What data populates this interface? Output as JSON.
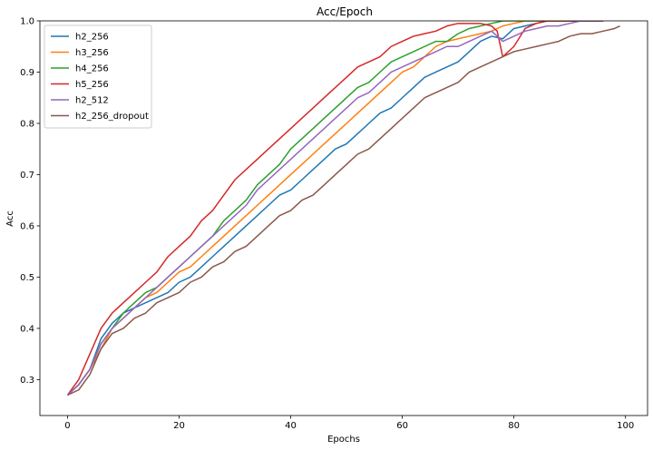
{
  "chart_data": {
    "type": "line",
    "title": "Acc/Epoch",
    "xlabel": "Epochs",
    "ylabel": "Acc",
    "xlim": [
      -4.95,
      103.95
    ],
    "ylim": [
      0.23,
      1.0
    ],
    "xticks": [
      0,
      20,
      40,
      60,
      80,
      100
    ],
    "yticks": [
      0.3,
      0.4,
      0.5,
      0.6,
      0.7,
      0.8,
      0.9,
      1.0
    ],
    "legend_position": "upper-left",
    "grid": false,
    "series": [
      {
        "name": "h2_256",
        "color": "#1f77b4",
        "x": [
          0,
          2,
          4,
          6,
          8,
          10,
          12,
          14,
          16,
          18,
          20,
          22,
          24,
          26,
          28,
          30,
          32,
          34,
          36,
          38,
          40,
          42,
          44,
          46,
          48,
          50,
          52,
          54,
          56,
          58,
          60,
          62,
          64,
          66,
          68,
          70,
          72,
          74,
          76,
          78,
          80,
          82,
          84,
          86,
          88,
          90,
          92,
          94,
          96
        ],
        "values": [
          0.27,
          0.29,
          0.32,
          0.38,
          0.41,
          0.43,
          0.44,
          0.45,
          0.46,
          0.47,
          0.49,
          0.5,
          0.52,
          0.54,
          0.56,
          0.58,
          0.6,
          0.62,
          0.64,
          0.66,
          0.67,
          0.69,
          0.71,
          0.73,
          0.75,
          0.76,
          0.78,
          0.8,
          0.82,
          0.83,
          0.85,
          0.87,
          0.89,
          0.9,
          0.91,
          0.92,
          0.94,
          0.96,
          0.97,
          0.965,
          0.985,
          0.99,
          0.995,
          1.0,
          1.0,
          1.0,
          1.0,
          1.0,
          1.0
        ]
      },
      {
        "name": "h3_256",
        "color": "#ff7f0e",
        "x": [
          0,
          2,
          4,
          6,
          8,
          10,
          12,
          14,
          16,
          18,
          20,
          22,
          24,
          26,
          28,
          30,
          32,
          34,
          36,
          38,
          40,
          42,
          44,
          46,
          48,
          50,
          52,
          54,
          56,
          58,
          60,
          62,
          64,
          66,
          68,
          70,
          72,
          74,
          76,
          78,
          80,
          82,
          84,
          86,
          88,
          90,
          92,
          94,
          96
        ],
        "values": [
          0.27,
          0.29,
          0.32,
          0.36,
          0.4,
          0.42,
          0.44,
          0.46,
          0.47,
          0.49,
          0.51,
          0.52,
          0.54,
          0.56,
          0.58,
          0.6,
          0.62,
          0.64,
          0.66,
          0.68,
          0.7,
          0.72,
          0.74,
          0.76,
          0.78,
          0.8,
          0.82,
          0.84,
          0.86,
          0.88,
          0.9,
          0.91,
          0.93,
          0.95,
          0.96,
          0.965,
          0.97,
          0.975,
          0.98,
          0.99,
          0.995,
          1.0,
          1.0,
          1.0,
          1.0,
          1.0,
          1.0,
          1.0,
          1.0
        ]
      },
      {
        "name": "h4_256",
        "color": "#2ca02c",
        "x": [
          0,
          2,
          4,
          6,
          8,
          10,
          12,
          14,
          16,
          18,
          20,
          22,
          24,
          26,
          28,
          30,
          32,
          34,
          36,
          38,
          40,
          42,
          44,
          46,
          48,
          50,
          52,
          54,
          56,
          58,
          60,
          62,
          64,
          66,
          68,
          70,
          72,
          74,
          76,
          78,
          80,
          82,
          84,
          86,
          88,
          90,
          92,
          94,
          96
        ],
        "values": [
          0.27,
          0.29,
          0.32,
          0.37,
          0.4,
          0.43,
          0.45,
          0.47,
          0.48,
          0.5,
          0.52,
          0.54,
          0.56,
          0.58,
          0.61,
          0.63,
          0.65,
          0.68,
          0.7,
          0.72,
          0.75,
          0.77,
          0.79,
          0.81,
          0.83,
          0.85,
          0.87,
          0.88,
          0.9,
          0.92,
          0.93,
          0.94,
          0.95,
          0.96,
          0.96,
          0.975,
          0.985,
          0.99,
          0.995,
          1.0,
          1.0,
          1.0,
          1.0,
          1.0,
          1.0,
          1.0,
          1.0,
          1.0,
          1.0
        ]
      },
      {
        "name": "h5_256",
        "color": "#d62728",
        "x": [
          0,
          2,
          4,
          6,
          8,
          10,
          12,
          14,
          16,
          18,
          20,
          22,
          24,
          26,
          28,
          30,
          32,
          34,
          36,
          38,
          40,
          42,
          44,
          46,
          48,
          50,
          52,
          54,
          56,
          58,
          60,
          62,
          64,
          66,
          68,
          70,
          72,
          74,
          76,
          77,
          78,
          80,
          82,
          84,
          86,
          88,
          90,
          92,
          94,
          96
        ],
        "values": [
          0.27,
          0.3,
          0.35,
          0.4,
          0.43,
          0.45,
          0.47,
          0.49,
          0.51,
          0.54,
          0.56,
          0.58,
          0.61,
          0.63,
          0.66,
          0.69,
          0.71,
          0.73,
          0.75,
          0.77,
          0.79,
          0.81,
          0.83,
          0.85,
          0.87,
          0.89,
          0.91,
          0.92,
          0.93,
          0.95,
          0.96,
          0.97,
          0.975,
          0.98,
          0.99,
          0.995,
          0.995,
          0.995,
          0.99,
          0.98,
          0.93,
          0.95,
          0.985,
          0.995,
          1.0,
          1.0,
          1.0,
          1.0,
          1.0,
          1.0
        ]
      },
      {
        "name": "h2_512",
        "color": "#9467bd",
        "x": [
          0,
          2,
          4,
          6,
          8,
          10,
          12,
          14,
          16,
          18,
          20,
          22,
          24,
          26,
          28,
          30,
          32,
          34,
          36,
          38,
          40,
          42,
          44,
          46,
          48,
          50,
          52,
          54,
          56,
          58,
          60,
          62,
          64,
          66,
          68,
          70,
          72,
          74,
          76,
          78,
          80,
          82,
          84,
          86,
          88,
          90,
          92,
          94,
          96
        ],
        "values": [
          0.27,
          0.29,
          0.32,
          0.37,
          0.4,
          0.42,
          0.44,
          0.46,
          0.48,
          0.5,
          0.52,
          0.54,
          0.56,
          0.58,
          0.6,
          0.62,
          0.64,
          0.67,
          0.69,
          0.71,
          0.73,
          0.75,
          0.77,
          0.79,
          0.81,
          0.83,
          0.85,
          0.86,
          0.88,
          0.9,
          0.91,
          0.92,
          0.93,
          0.94,
          0.95,
          0.95,
          0.96,
          0.97,
          0.98,
          0.96,
          0.97,
          0.98,
          0.985,
          0.99,
          0.99,
          0.995,
          1.0,
          1.0,
          1.0
        ]
      },
      {
        "name": "h2_256_dropout",
        "color": "#8c564b",
        "x": [
          0,
          2,
          4,
          6,
          8,
          10,
          12,
          14,
          16,
          18,
          20,
          22,
          24,
          26,
          28,
          30,
          32,
          34,
          36,
          38,
          40,
          42,
          44,
          46,
          48,
          50,
          52,
          54,
          56,
          58,
          60,
          62,
          64,
          66,
          68,
          70,
          72,
          74,
          76,
          78,
          80,
          82,
          84,
          86,
          88,
          90,
          92,
          94,
          96,
          98,
          99
        ],
        "values": [
          0.27,
          0.28,
          0.31,
          0.36,
          0.39,
          0.4,
          0.42,
          0.43,
          0.45,
          0.46,
          0.47,
          0.49,
          0.5,
          0.52,
          0.53,
          0.55,
          0.56,
          0.58,
          0.6,
          0.62,
          0.63,
          0.65,
          0.66,
          0.68,
          0.7,
          0.72,
          0.74,
          0.75,
          0.77,
          0.79,
          0.81,
          0.83,
          0.85,
          0.86,
          0.87,
          0.88,
          0.9,
          0.91,
          0.92,
          0.93,
          0.94,
          0.945,
          0.95,
          0.955,
          0.96,
          0.97,
          0.975,
          0.975,
          0.98,
          0.985,
          0.99
        ]
      }
    ]
  }
}
